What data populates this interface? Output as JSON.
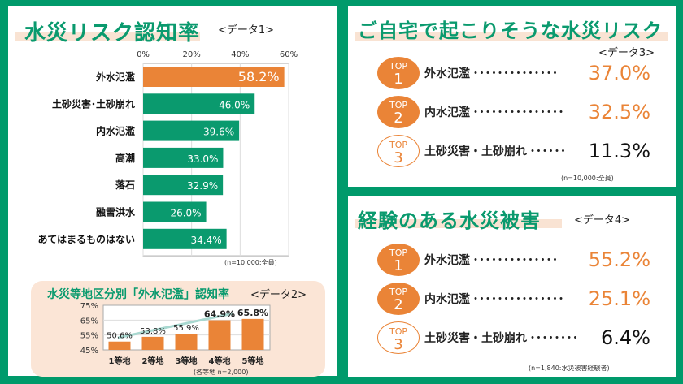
{
  "data1": {
    "title": "水災リスク認知率",
    "tag": "<データ1>",
    "note": "(n=10,000:全員)"
  },
  "data2": {
    "title": "水災等地区分別「外水氾濫」認知率",
    "tag": "<データ2>",
    "note": "(各等地 n=2,000)"
  },
  "data3": {
    "title": "ご自宅で起こりそうな水災リスク",
    "tag": "<データ3>",
    "note": "(n=10,000:全員)",
    "items": [
      {
        "top": "TOP",
        "rank": "1",
        "label": "外水氾濫・・・・・・・・・・・・・・",
        "value": "37.0%"
      },
      {
        "top": "TOP",
        "rank": "2",
        "label": "内水氾濫・・・・・・・・・・・・・・・",
        "value": "32.5%"
      },
      {
        "top": "TOP",
        "rank": "3",
        "label": "土砂災害・土砂崩れ・・・・・・",
        "value": "11.3%"
      }
    ]
  },
  "data4": {
    "title": "経験のある水災被害",
    "tag": "<データ4>",
    "note": "(n=1,840:水災被害経験者)",
    "items": [
      {
        "top": "TOP",
        "rank": "1",
        "label": "外水氾濫・・・・・・・・・・・・・・",
        "value": "55.2%"
      },
      {
        "top": "TOP",
        "rank": "2",
        "label": "内水氾濫・・・・・・・・・・・・・・・",
        "value": "25.1%"
      },
      {
        "top": "TOP",
        "rank": "3",
        "label": "土砂災害・土砂崩れ・・・・・・・・",
        "value": "6.4%"
      }
    ]
  },
  "colors": {
    "green": "#0a9a6e",
    "orange": "#ea8437",
    "pink": "#fbe5d6"
  },
  "chart_data": [
    {
      "type": "bar",
      "orientation": "horizontal",
      "categories": [
        "外水氾濫",
        "土砂災害･土砂崩れ",
        "内水氾濫",
        "高潮",
        "落石",
        "融雪洪水",
        "あてはまるものはない"
      ],
      "values": [
        58.2,
        46.0,
        39.6,
        33.0,
        32.9,
        26.0,
        34.4
      ],
      "labels": [
        "58.2%",
        "46.0%",
        "39.6%",
        "33.0%",
        "32.9%",
        "26.0%",
        "34.4%"
      ],
      "xlim": [
        0,
        60
      ],
      "ticks": [
        "0%",
        "20%",
        "40%",
        "60%"
      ],
      "grid": true
    },
    {
      "type": "bar",
      "categories": [
        "1等地",
        "2等地",
        "3等地",
        "4等地",
        "5等地"
      ],
      "values": [
        50.6,
        53.8,
        55.9,
        64.9,
        65.8
      ],
      "labels": [
        "50.6%",
        "53.8%",
        "55.9%",
        "64.9%",
        "65.8%"
      ],
      "ylim": [
        45,
        75
      ],
      "ticks": [
        "75%",
        "65%",
        "55%",
        "45%"
      ],
      "grid": true
    }
  ]
}
